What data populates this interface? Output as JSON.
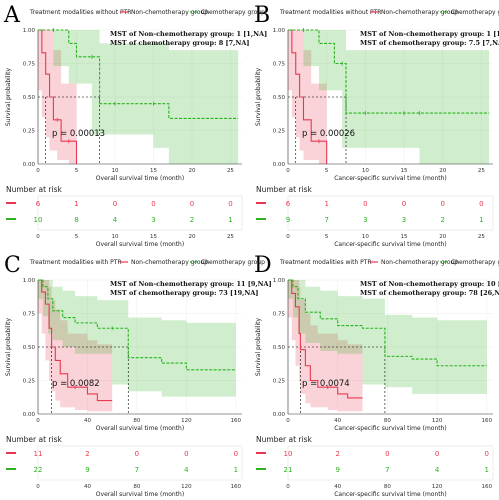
{
  "legend": {
    "non_chemo": "Non-chemotherapy group",
    "chemo": "Chemotherapy group",
    "colors": {
      "non_chemo": "#e8384f",
      "chemo": "#2ab31e"
    }
  },
  "risk_table_title": "Number at risk",
  "chart_data": [
    {
      "type": "line",
      "panel": "A",
      "title": "Treatment modalities without PTR",
      "xlabel": "Overall survival time (month)",
      "ylabel": "Survival probability",
      "xlim": [
        0,
        26.5
      ],
      "ylim": [
        0,
        1
      ],
      "xticks": [
        0,
        5,
        10,
        15,
        20,
        25
      ],
      "yticks": [
        "0.00",
        "0.25",
        "0.50",
        "0.75",
        "1.00"
      ],
      "pvalue": "p = 0.00013",
      "mst": [
        "MST of Non-chemotherapy group: 1 [1,NA]",
        "MST of chemotherapy group: 8 [7,NA]"
      ],
      "median_lines": [
        1,
        8
      ],
      "series": [
        {
          "name": "Non-chemotherapy group",
          "key": "non_chemo",
          "x": [
            0,
            0.5,
            1,
            1.5,
            2,
            2.5,
            3,
            4,
            5
          ],
          "y": [
            1.0,
            0.83,
            0.67,
            0.5,
            0.33,
            0.33,
            0.17,
            0.17,
            0.0
          ],
          "ci_low": [
            1.0,
            0.55,
            0.35,
            0.2,
            0.1,
            0.1,
            0.03,
            0.03,
            0.0
          ],
          "ci_high": [
            1.0,
            1.0,
            1.0,
            1.0,
            0.85,
            0.85,
            0.6,
            0.6,
            0.0
          ]
        },
        {
          "name": "Chemotherapy group",
          "key": "chemo",
          "x": [
            0,
            2,
            4,
            5,
            7,
            8,
            10,
            15,
            17,
            26
          ],
          "y": [
            1.0,
            1.0,
            0.9,
            0.8,
            0.8,
            0.45,
            0.45,
            0.45,
            0.34,
            0.34
          ],
          "ci_low": [
            1.0,
            1.0,
            0.73,
            0.6,
            0.6,
            0.22,
            0.22,
            0.22,
            0.12,
            0.0
          ],
          "ci_high": [
            1.0,
            1.0,
            1.0,
            1.0,
            1.0,
            0.9,
            0.9,
            0.9,
            0.85,
            0.85
          ]
        }
      ],
      "risk": {
        "x": [
          0,
          5,
          10,
          15,
          20,
          25
        ],
        "non_chemo": [
          6,
          1,
          0,
          0,
          0,
          0
        ],
        "chemo": [
          10,
          8,
          4,
          3,
          2,
          1
        ]
      }
    },
    {
      "type": "line",
      "panel": "B",
      "title": "Treatment modalities without PTR",
      "xlabel": "Cancer-specific survival time (month)",
      "ylabel": "Survival probability",
      "xlim": [
        0,
        26.5
      ],
      "ylim": [
        0,
        1
      ],
      "xticks": [
        0,
        5,
        10,
        15,
        20,
        25
      ],
      "yticks": [
        "0.00",
        "0.25",
        "0.50",
        "0.75",
        "1.00"
      ],
      "pvalue": "p = 0.00026",
      "mst": [
        "MST of Non-chemotherapy group: 1 [1,NA]",
        "MST of chemotherapy group: 7.5 [7,NA]"
      ],
      "median_lines": [
        1,
        7.5
      ],
      "series": [
        {
          "name": "Non-chemotherapy group",
          "key": "non_chemo",
          "x": [
            0,
            0.5,
            1,
            1.5,
            2,
            3,
            4,
            5
          ],
          "y": [
            1.0,
            0.83,
            0.67,
            0.5,
            0.33,
            0.17,
            0.17,
            0.0
          ],
          "ci_low": [
            1.0,
            0.55,
            0.35,
            0.2,
            0.1,
            0.03,
            0.03,
            0.0
          ],
          "ci_high": [
            1.0,
            1.0,
            1.0,
            1.0,
            0.85,
            0.6,
            0.6,
            0.0
          ]
        },
        {
          "name": "Chemotherapy group",
          "key": "chemo",
          "x": [
            0,
            2,
            4,
            6,
            7,
            7.5,
            10,
            15,
            17,
            26
          ],
          "y": [
            1.0,
            1.0,
            0.9,
            0.75,
            0.75,
            0.38,
            0.38,
            0.38,
            0.38,
            0.38
          ],
          "ci_low": [
            1.0,
            1.0,
            0.73,
            0.55,
            0.55,
            0.12,
            0.12,
            0.12,
            0.12,
            0.0
          ],
          "ci_high": [
            1.0,
            1.0,
            1.0,
            1.0,
            1.0,
            0.85,
            0.85,
            0.85,
            0.85,
            0.85
          ]
        }
      ],
      "risk": {
        "x": [
          0,
          5,
          10,
          15,
          20,
          25
        ],
        "non_chemo": [
          6,
          1,
          0,
          0,
          0,
          0
        ],
        "chemo": [
          9,
          7,
          3,
          3,
          2,
          1
        ]
      }
    },
    {
      "type": "line",
      "panel": "C",
      "title": "Treatment modalities with PTR",
      "xlabel": "Overall survival time (month)",
      "ylabel": "Survival probability",
      "xlim": [
        0,
        165
      ],
      "ylim": [
        0,
        1
      ],
      "xticks": [
        0,
        40,
        80,
        120,
        160
      ],
      "yticks": [
        "0.00",
        "0.25",
        "0.50",
        "0.75",
        "1.00"
      ],
      "pvalue": "p = 0.0082",
      "mst": [
        "MST of Non-chemotherapy group: 11 [9,NA]",
        "MST of chemotherapy group: 73 [19,NA]"
      ],
      "median_lines": [
        11,
        73
      ],
      "series": [
        {
          "name": "Non-chemotherapy group",
          "key": "non_chemo",
          "x": [
            0,
            3,
            6,
            9,
            11,
            14,
            18,
            24,
            30,
            40,
            48,
            60
          ],
          "y": [
            1.0,
            0.91,
            0.82,
            0.64,
            0.5,
            0.4,
            0.3,
            0.2,
            0.2,
            0.15,
            0.1,
            0.1
          ],
          "ci_low": [
            1.0,
            0.75,
            0.6,
            0.4,
            0.25,
            0.17,
            0.1,
            0.05,
            0.05,
            0.03,
            0.02,
            0.02
          ],
          "ci_high": [
            1.0,
            1.0,
            1.0,
            0.95,
            0.85,
            0.78,
            0.7,
            0.6,
            0.6,
            0.55,
            0.52,
            0.52
          ]
        },
        {
          "name": "Chemotherapy group",
          "key": "chemo",
          "x": [
            0,
            4,
            8,
            12,
            20,
            30,
            48,
            60,
            73,
            100,
            120,
            160
          ],
          "y": [
            1.0,
            0.95,
            0.86,
            0.77,
            0.72,
            0.68,
            0.64,
            0.64,
            0.42,
            0.38,
            0.33,
            0.33
          ],
          "ci_low": [
            1.0,
            0.86,
            0.73,
            0.6,
            0.55,
            0.5,
            0.45,
            0.45,
            0.22,
            0.17,
            0.13,
            0.13
          ],
          "ci_high": [
            1.0,
            1.0,
            1.0,
            0.95,
            0.92,
            0.88,
            0.85,
            0.85,
            0.72,
            0.7,
            0.68,
            0.68
          ]
        }
      ],
      "risk": {
        "x": [
          0,
          40,
          80,
          120,
          160
        ],
        "non_chemo": [
          11,
          2,
          0,
          0,
          0
        ],
        "chemo": [
          22,
          9,
          7,
          4,
          1
        ]
      }
    },
    {
      "type": "line",
      "panel": "D",
      "title": "Treatment modalities with PTR",
      "xlabel": "Cancer-specific survival time (month)",
      "ylabel": "Survival probability",
      "xlim": [
        0,
        165
      ],
      "ylim": [
        0,
        1
      ],
      "xticks": [
        0,
        40,
        80,
        120,
        160
      ],
      "yticks": [
        "0.00",
        "0.25",
        "0.50",
        "0.75",
        "1.00"
      ],
      "pvalue": "p = 0.0074",
      "mst": [
        "MST of Non-chemotherapy group: 10 [9,NA]",
        "MST of chemotherapy group: 78 [26,NA]"
      ],
      "median_lines": [
        10,
        78
      ],
      "series": [
        {
          "name": "Non-chemotherapy group",
          "key": "non_chemo",
          "x": [
            0,
            3,
            6,
            9,
            10,
            14,
            18,
            24,
            32,
            40,
            48,
            60
          ],
          "y": [
            1.0,
            0.9,
            0.8,
            0.6,
            0.48,
            0.36,
            0.25,
            0.2,
            0.2,
            0.15,
            0.12,
            0.12
          ],
          "ci_low": [
            1.0,
            0.72,
            0.55,
            0.36,
            0.24,
            0.15,
            0.08,
            0.05,
            0.05,
            0.03,
            0.02,
            0.02
          ],
          "ci_high": [
            1.0,
            1.0,
            1.0,
            0.95,
            0.85,
            0.75,
            0.66,
            0.6,
            0.6,
            0.55,
            0.52,
            0.52
          ]
        },
        {
          "name": "Chemotherapy group",
          "key": "chemo",
          "x": [
            0,
            4,
            8,
            14,
            26,
            40,
            60,
            78,
            100,
            120,
            160
          ],
          "y": [
            1.0,
            0.95,
            0.86,
            0.76,
            0.71,
            0.66,
            0.64,
            0.43,
            0.41,
            0.36,
            0.36
          ],
          "ci_low": [
            1.0,
            0.86,
            0.72,
            0.6,
            0.53,
            0.47,
            0.45,
            0.22,
            0.2,
            0.15,
            0.15
          ],
          "ci_high": [
            1.0,
            1.0,
            1.0,
            0.95,
            0.92,
            0.88,
            0.86,
            0.74,
            0.72,
            0.7,
            0.7
          ]
        }
      ],
      "risk": {
        "x": [
          0,
          40,
          80,
          120,
          160
        ],
        "non_chemo": [
          10,
          2,
          0,
          0,
          0
        ],
        "chemo": [
          21,
          9,
          7,
          4,
          1
        ]
      }
    }
  ]
}
